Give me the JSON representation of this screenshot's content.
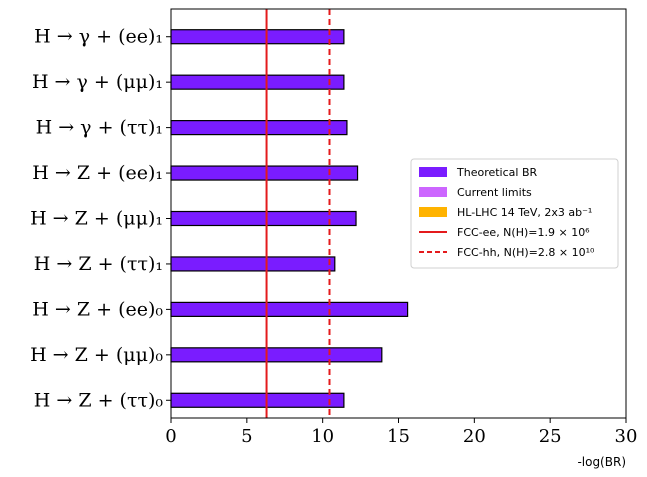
{
  "chart_data": {
    "type": "bar",
    "orientation": "horizontal",
    "categories": [
      "H → γ + (ee)₁",
      "H → γ + (μμ)₁",
      "H → γ + (ττ)₁",
      "H → Z + (ee)₁",
      "H → Z + (μμ)₁",
      "H → Z + (ττ)₁",
      "H → Z + (ee)₀",
      "H → Z + (μμ)₀",
      "H → Z + (ττ)₀"
    ],
    "series": [
      {
        "name": "Theoretical BR",
        "color": "#7a1cff",
        "values": [
          11.4,
          11.4,
          11.6,
          12.3,
          12.2,
          10.8,
          15.6,
          13.9,
          11.4
        ]
      }
    ],
    "reference_lines": [
      {
        "name": "FCC-ee, N(H)=1.9 × 10⁶",
        "value": 6.3,
        "style": "solid",
        "color": "#e41a1c"
      },
      {
        "name": "FCC-hh, N(H)=2.8 × 10¹⁰",
        "value": 10.45,
        "style": "dashed",
        "color": "#e41a1c"
      }
    ],
    "legend": {
      "placement": "center-right",
      "entries": [
        {
          "label": "Theoretical BR",
          "kind": "patch",
          "color": "#7a1cff"
        },
        {
          "label": "Current limits",
          "kind": "patch",
          "color": "#cc66ff"
        },
        {
          "label": "HL-LHC 14 TeV, 2x3 ab⁻¹",
          "kind": "patch",
          "color": "#ffb300"
        },
        {
          "label": "FCC-ee, N(H)=1.9 × 10⁶",
          "kind": "line-solid",
          "color": "#e41a1c"
        },
        {
          "label": "FCC-hh, N(H)=2.8 × 10¹⁰",
          "kind": "line-dashed",
          "color": "#e41a1c"
        }
      ]
    },
    "xlabel": "-log(BR)",
    "ylabel": "",
    "title": "",
    "xlim": [
      0,
      30
    ],
    "xticks": [
      0,
      5,
      10,
      15,
      20,
      25,
      30
    ],
    "grid": false
  }
}
